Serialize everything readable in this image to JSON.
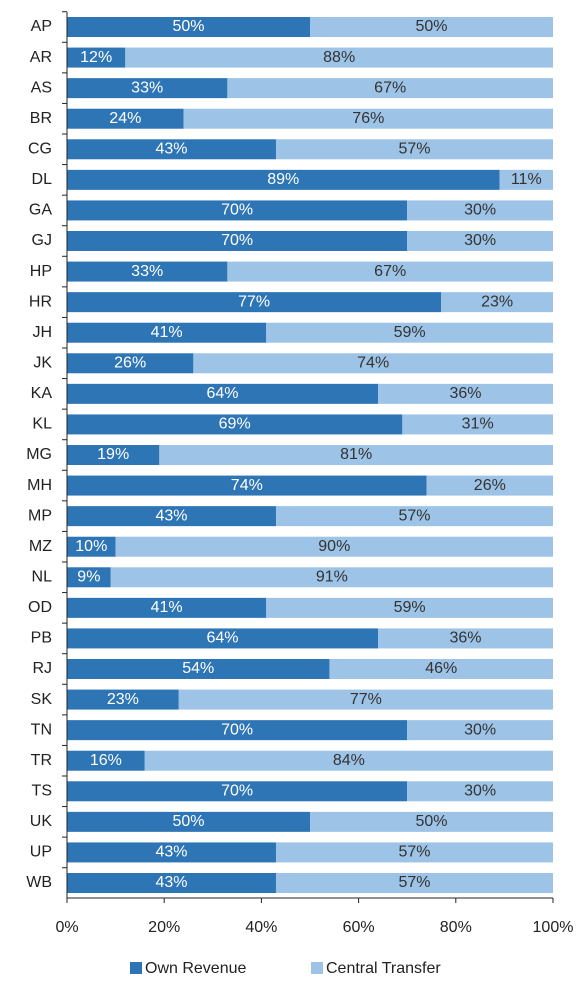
{
  "chart_data": {
    "type": "stacked-barh",
    "categories": [
      "AP",
      "AR",
      "AS",
      "BR",
      "CG",
      "DL",
      "GA",
      "GJ",
      "HP",
      "HR",
      "JH",
      "JK",
      "KA",
      "KL",
      "MG",
      "MH",
      "MP",
      "MZ",
      "NL",
      "OD",
      "PB",
      "RJ",
      "SK",
      "TN",
      "TR",
      "TS",
      "UK",
      "UP",
      "WB"
    ],
    "series": [
      {
        "name": "Own Revenue",
        "color": "#2e75b6",
        "values": [
          50,
          12,
          33,
          24,
          43,
          89,
          70,
          70,
          33,
          77,
          41,
          26,
          64,
          69,
          19,
          74,
          43,
          10,
          9,
          41,
          64,
          54,
          23,
          70,
          16,
          70,
          50,
          43,
          43
        ],
        "value_labels": [
          "50%",
          "12%",
          "33%",
          "24%",
          "43%",
          "89%",
          "70%",
          "70%",
          "33%",
          "77%",
          "41%",
          "26%",
          "64%",
          "69%",
          "19%",
          "74%",
          "43%",
          "10%",
          "9%",
          "41%",
          "64%",
          "54%",
          "23%",
          "70%",
          "16%",
          "70%",
          "50%",
          "43%",
          "43%"
        ]
      },
      {
        "name": "Central Transfer",
        "color": "#9dc3e6",
        "values": [
          50,
          88,
          67,
          76,
          57,
          11,
          30,
          30,
          67,
          23,
          59,
          74,
          36,
          31,
          81,
          26,
          57,
          90,
          91,
          59,
          36,
          46,
          77,
          30,
          84,
          30,
          50,
          57,
          57
        ],
        "value_labels": [
          "50%",
          "88%",
          "67%",
          "76%",
          "57%",
          "11%",
          "30%",
          "30%",
          "67%",
          "23%",
          "59%",
          "74%",
          "36%",
          "31%",
          "81%",
          "26%",
          "57%",
          "90%",
          "91%",
          "59%",
          "36%",
          "46%",
          "77%",
          "30%",
          "84%",
          "30%",
          "50%",
          "57%",
          "57%"
        ]
      }
    ],
    "xlim": [
      0,
      100
    ],
    "xticks": [
      {
        "value": 0,
        "label": "0%"
      },
      {
        "value": 20,
        "label": "20%"
      },
      {
        "value": 40,
        "label": "40%"
      },
      {
        "value": 60,
        "label": "60%"
      },
      {
        "value": 80,
        "label": "80%"
      },
      {
        "value": 100,
        "label": "100%"
      }
    ],
    "legend": "bottom"
  }
}
